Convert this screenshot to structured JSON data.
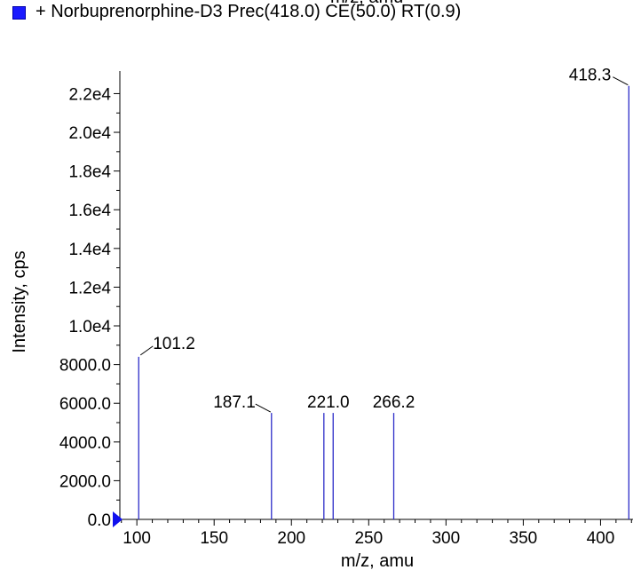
{
  "legend": {
    "label": "+ Norbuprenorphine-D3 Prec(418.0) CE(50.0) RT(0.9)",
    "color": "#1a1aff"
  },
  "clipped_top_label": "m/z, amu",
  "chart_data": {
    "type": "bar",
    "xlabel": "m/z, amu",
    "ylabel": "Intensity, cps",
    "xlim": [
      89,
      421
    ],
    "ylim": [
      0,
      22800
    ],
    "x_ticks": [
      100,
      150,
      200,
      250,
      300,
      350,
      400
    ],
    "x_tick_labels": [
      "100",
      "150",
      "200",
      "250",
      "300",
      "350",
      "400"
    ],
    "y_ticks": [
      0,
      2000,
      4000,
      6000,
      8000,
      10000,
      12000,
      14000,
      16000,
      18000,
      20000,
      22000
    ],
    "y_tick_labels": [
      "0.0",
      "2000.0",
      "4000.0",
      "6000.0",
      "8000.0",
      "1.0e4",
      "1.2e4",
      "1.4e4",
      "1.6e4",
      "1.8e4",
      "2.0e4",
      "2.2e4"
    ],
    "peaks": [
      {
        "mz": 101.2,
        "intensity": 8400,
        "label": "101.2"
      },
      {
        "mz": 187.1,
        "intensity": 5500,
        "label": "187.1"
      },
      {
        "mz": 221.0,
        "intensity": 5500,
        "label": "221.0"
      },
      {
        "mz": 227.0,
        "intensity": 5500,
        "label": ""
      },
      {
        "mz": 266.2,
        "intensity": 5500,
        "label": "266.2"
      },
      {
        "mz": 418.3,
        "intensity": 22400,
        "label": "418.3"
      }
    ],
    "line_color": "#2b2bc8",
    "marker_color": "#1010ee"
  }
}
